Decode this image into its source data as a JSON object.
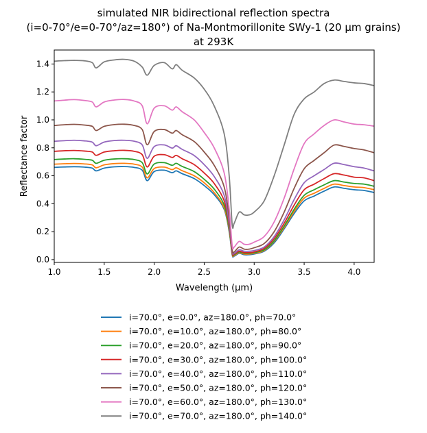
{
  "chart_data": {
    "type": "line",
    "title_lines": [
      "simulated NIR bidirectional reflection spectra",
      "(i=0-70°/e=0-70°/az=180°) of Na-Montmorillonite SWy-1 (20 µm grains)",
      "at 293K"
    ],
    "xlabel": "Wavelength (μm)",
    "ylabel": "Reflectance factor",
    "xlim": [
      1.0,
      4.2
    ],
    "ylim": [
      -0.02,
      1.5
    ],
    "xticks": [
      1.0,
      1.5,
      2.0,
      2.5,
      3.0,
      3.5,
      4.0
    ],
    "xtick_labels": [
      "1.0",
      "1.5",
      "2.0",
      "2.5",
      "3.0",
      "3.5",
      "4.0"
    ],
    "yticks": [
      0.0,
      0.2,
      0.4,
      0.6,
      0.8,
      1.0,
      1.2,
      1.4
    ],
    "ytick_labels": [
      "0.0",
      "0.2",
      "0.4",
      "0.6",
      "0.8",
      "1.0",
      "1.2",
      "1.4"
    ],
    "grid": false,
    "legend_position": "below",
    "x": [
      1.0,
      1.1,
      1.2,
      1.3,
      1.38,
      1.42,
      1.5,
      1.6,
      1.7,
      1.8,
      1.88,
      1.93,
      2.0,
      2.1,
      2.18,
      2.22,
      2.28,
      2.4,
      2.5,
      2.6,
      2.7,
      2.75,
      2.78,
      2.8,
      2.85,
      2.9,
      2.95,
      3.0,
      3.1,
      3.2,
      3.3,
      3.4,
      3.5,
      3.6,
      3.7,
      3.8,
      3.9,
      4.0,
      4.1,
      4.2
    ],
    "series": [
      {
        "name": "i=70.0°, e=0.0°, az=180.0°, ph=70.0°",
        "color": "#1f77b4",
        "values": [
          0.66,
          0.663,
          0.665,
          0.662,
          0.655,
          0.635,
          0.655,
          0.664,
          0.666,
          0.66,
          0.64,
          0.565,
          0.63,
          0.64,
          0.622,
          0.635,
          0.615,
          0.58,
          0.53,
          0.465,
          0.36,
          0.2,
          0.035,
          0.025,
          0.045,
          0.035,
          0.035,
          0.04,
          0.06,
          0.12,
          0.22,
          0.33,
          0.42,
          0.455,
          0.49,
          0.52,
          0.51,
          0.5,
          0.495,
          0.48
        ]
      },
      {
        "name": "i=70.0°, e=10.0°, az=180.0°, ph=80.0°",
        "color": "#ff7f0e",
        "values": [
          0.683,
          0.686,
          0.688,
          0.685,
          0.678,
          0.657,
          0.678,
          0.687,
          0.689,
          0.683,
          0.662,
          0.585,
          0.652,
          0.662,
          0.644,
          0.657,
          0.636,
          0.6,
          0.55,
          0.48,
          0.37,
          0.21,
          0.04,
          0.03,
          0.05,
          0.04,
          0.04,
          0.045,
          0.065,
          0.13,
          0.23,
          0.345,
          0.44,
          0.475,
          0.51,
          0.54,
          0.53,
          0.52,
          0.515,
          0.5
        ]
      },
      {
        "name": "i=70.0°, e=20.0°, az=180.0°, ph=90.0°",
        "color": "#2ca02c",
        "values": [
          0.716,
          0.72,
          0.722,
          0.718,
          0.711,
          0.689,
          0.711,
          0.72,
          0.722,
          0.716,
          0.694,
          0.613,
          0.684,
          0.694,
          0.675,
          0.689,
          0.667,
          0.63,
          0.575,
          0.505,
          0.39,
          0.22,
          0.045,
          0.035,
          0.055,
          0.045,
          0.045,
          0.05,
          0.07,
          0.135,
          0.24,
          0.36,
          0.46,
          0.5,
          0.535,
          0.565,
          0.555,
          0.545,
          0.54,
          0.525
        ]
      },
      {
        "name": "i=70.0°, e=30.0°, az=180.0°, ph=100.0°",
        "color": "#d62728",
        "values": [
          0.775,
          0.779,
          0.781,
          0.777,
          0.77,
          0.746,
          0.77,
          0.779,
          0.782,
          0.775,
          0.751,
          0.663,
          0.74,
          0.751,
          0.731,
          0.746,
          0.722,
          0.68,
          0.62,
          0.545,
          0.42,
          0.24,
          0.05,
          0.04,
          0.06,
          0.05,
          0.05,
          0.055,
          0.08,
          0.15,
          0.26,
          0.39,
          0.5,
          0.54,
          0.58,
          0.615,
          0.605,
          0.59,
          0.585,
          0.565
        ]
      },
      {
        "name": "i=70.0°, e=40.0°, az=180.0°, ph=110.0°",
        "color": "#9467bd",
        "values": [
          0.847,
          0.851,
          0.854,
          0.85,
          0.841,
          0.815,
          0.841,
          0.852,
          0.854,
          0.847,
          0.821,
          0.725,
          0.809,
          0.821,
          0.798,
          0.815,
          0.789,
          0.745,
          0.68,
          0.595,
          0.46,
          0.26,
          0.06,
          0.045,
          0.07,
          0.06,
          0.06,
          0.065,
          0.09,
          0.165,
          0.285,
          0.43,
          0.55,
          0.6,
          0.645,
          0.69,
          0.68,
          0.665,
          0.655,
          0.635
        ]
      },
      {
        "name": "i=70.0°, e=50.0°, az=180.0°, ph=120.0°",
        "color": "#8c564b",
        "values": [
          0.96,
          0.965,
          0.968,
          0.963,
          0.954,
          0.924,
          0.954,
          0.966,
          0.969,
          0.96,
          0.931,
          0.822,
          0.917,
          0.931,
          0.905,
          0.924,
          0.894,
          0.845,
          0.77,
          0.675,
          0.52,
          0.3,
          0.07,
          0.055,
          0.09,
          0.075,
          0.075,
          0.085,
          0.115,
          0.2,
          0.34,
          0.51,
          0.65,
          0.71,
          0.765,
          0.82,
          0.81,
          0.795,
          0.785,
          0.765
        ]
      },
      {
        "name": "i=70.0°, e=60.0°, az=180.0°, ph=130.0°",
        "color": "#e377c2",
        "values": [
          1.135,
          1.141,
          1.145,
          1.139,
          1.128,
          1.093,
          1.128,
          1.142,
          1.146,
          1.135,
          1.101,
          0.972,
          1.084,
          1.101,
          1.07,
          1.093,
          1.058,
          1.0,
          0.91,
          0.8,
          0.62,
          0.36,
          0.1,
          0.09,
          0.13,
          0.11,
          0.11,
          0.125,
          0.165,
          0.27,
          0.44,
          0.65,
          0.83,
          0.9,
          0.96,
          1.0,
          0.985,
          0.97,
          0.965,
          0.955
        ]
      },
      {
        "name": "i=70.0°, e=70.0°, az=180.0°, ph=140.0°",
        "color": "#7f7f7f",
        "values": [
          1.42,
          1.424,
          1.426,
          1.423,
          1.41,
          1.372,
          1.415,
          1.429,
          1.433,
          1.42,
          1.378,
          1.32,
          1.39,
          1.41,
          1.365,
          1.395,
          1.355,
          1.3,
          1.22,
          1.1,
          0.9,
          0.6,
          0.25,
          0.26,
          0.34,
          0.32,
          0.32,
          0.34,
          0.42,
          0.6,
          0.82,
          1.04,
          1.15,
          1.2,
          1.26,
          1.285,
          1.275,
          1.265,
          1.26,
          1.245
        ]
      }
    ]
  }
}
